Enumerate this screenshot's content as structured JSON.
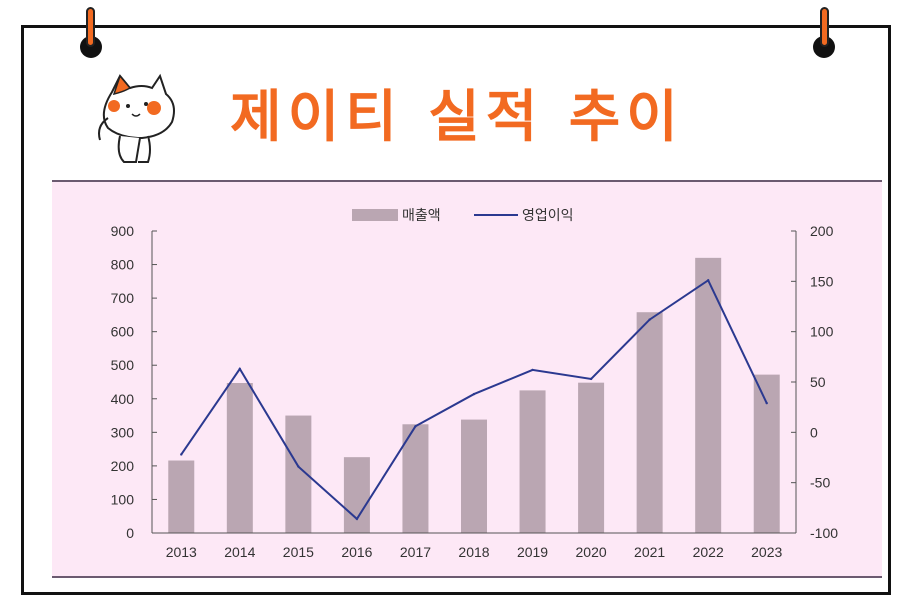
{
  "title": "제이티 실적 추이",
  "colors": {
    "accent": "#f26a21",
    "panel_bg": "#fde8f6",
    "bar": "#baa6b2",
    "line": "#2b3990"
  },
  "chart_data": {
    "type": "bar",
    "categories": [
      "2013",
      "2014",
      "2015",
      "2016",
      "2017",
      "2018",
      "2019",
      "2020",
      "2021",
      "2022",
      "2023"
    ],
    "series": [
      {
        "name": "매출액",
        "type": "bar",
        "axis": "left",
        "values": [
          216,
          447,
          350,
          226,
          324,
          338,
          425,
          448,
          658,
          820,
          472
        ]
      },
      {
        "name": "영업이익",
        "type": "line",
        "axis": "right",
        "values": [
          -22,
          63,
          -34,
          -86,
          6,
          38,
          62,
          53,
          112,
          151,
          29
        ]
      }
    ],
    "ylim_left": [
      0,
      900
    ],
    "yticks_left": [
      "900",
      "800",
      "700",
      "600",
      "500",
      "400",
      "300",
      "200",
      "100",
      "0"
    ],
    "ylim_right": [
      -100,
      200
    ],
    "yticks_right": [
      "200",
      "150",
      "100",
      "50",
      "0",
      "-50",
      "-100"
    ],
    "legend_position": "top-center",
    "grid": false
  }
}
